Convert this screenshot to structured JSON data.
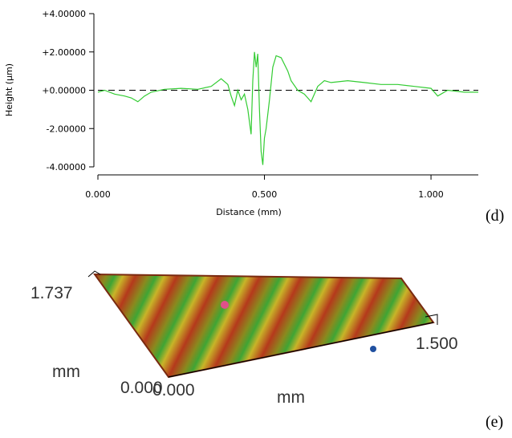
{
  "chart_data": {
    "type": "line",
    "x_label": "Distance (mm)",
    "y_label": "Height (µm)",
    "x": [
      0,
      0.02,
      0.05,
      0.08,
      0.1,
      0.12,
      0.14,
      0.16,
      0.2,
      0.25,
      0.3,
      0.34,
      0.37,
      0.39,
      0.4,
      0.41,
      0.42,
      0.43,
      0.44,
      0.45,
      0.46,
      0.465,
      0.47,
      0.475,
      0.48,
      0.485,
      0.49,
      0.495,
      0.5,
      0.505,
      0.515,
      0.525,
      0.535,
      0.55,
      0.57,
      0.58,
      0.6,
      0.62,
      0.64,
      0.66,
      0.68,
      0.7,
      0.75,
      0.8,
      0.85,
      0.9,
      0.95,
      1.0,
      1.02,
      1.05,
      1.1,
      1.142
    ],
    "series": [
      {
        "color": "#33cc33",
        "values": [
          -0.1,
          0,
          -0.2,
          -0.3,
          -0.4,
          -0.6,
          -0.3,
          -0.1,
          0.05,
          0.1,
          0.05,
          0.2,
          0.6,
          0.3,
          -0.3,
          -0.8,
          0,
          -0.5,
          -0.2,
          -1.0,
          -2.3,
          0.5,
          2.0,
          1.2,
          1.9,
          -1.0,
          -3.2,
          -3.9,
          -2.5,
          -2.0,
          -0.5,
          1.2,
          1.8,
          1.7,
          1.0,
          0.5,
          0,
          -0.2,
          -0.6,
          0.2,
          0.5,
          0.4,
          0.5,
          0.4,
          0.3,
          0.3,
          0.2,
          0.1,
          -0.3,
          0,
          -0.1,
          -0.1
        ]
      }
    ],
    "xlim": [
      0,
      1.142
    ],
    "ylim": [
      -4,
      4
    ],
    "xticks": [
      {
        "value": 0,
        "label": "0.000"
      },
      {
        "value": 0.5,
        "label": "0.500"
      },
      {
        "value": 1,
        "label": "1.000"
      }
    ],
    "yticks": [
      {
        "value": 4,
        "label": "+4.00000"
      },
      {
        "value": 2,
        "label": "+2.00000"
      },
      {
        "value": 0,
        "label": "+0.00000"
      },
      {
        "value": -2,
        "label": "-2.00000"
      },
      {
        "value": -4,
        "label": "-4.00000"
      }
    ],
    "reference_line": 0,
    "panel_label": "(d)"
  },
  "surface": {
    "z_max": "1.737",
    "z_unit": "mm",
    "origin_a": "0.000",
    "origin_b": "0.000",
    "x_max": "1.500",
    "x_unit": "mm",
    "panel_label": "(e)"
  }
}
